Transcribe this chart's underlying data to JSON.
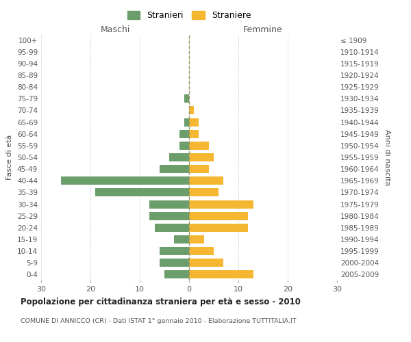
{
  "age_groups": [
    "100+",
    "95-99",
    "90-94",
    "85-89",
    "80-84",
    "75-79",
    "70-74",
    "65-69",
    "60-64",
    "55-59",
    "50-54",
    "45-49",
    "40-44",
    "35-39",
    "30-34",
    "25-29",
    "20-24",
    "15-19",
    "10-14",
    "5-9",
    "0-4"
  ],
  "birth_years": [
    "≤ 1909",
    "1910-1914",
    "1915-1919",
    "1920-1924",
    "1925-1929",
    "1930-1934",
    "1935-1939",
    "1940-1944",
    "1945-1949",
    "1950-1954",
    "1955-1959",
    "1960-1964",
    "1965-1969",
    "1970-1974",
    "1975-1979",
    "1980-1984",
    "1985-1989",
    "1990-1994",
    "1995-1999",
    "2000-2004",
    "2005-2009"
  ],
  "maschi": [
    0,
    0,
    0,
    0,
    0,
    1,
    0,
    1,
    2,
    2,
    4,
    6,
    26,
    19,
    8,
    8,
    7,
    3,
    6,
    6,
    5
  ],
  "femmine": [
    0,
    0,
    0,
    0,
    0,
    0,
    1,
    2,
    2,
    4,
    5,
    4,
    7,
    6,
    13,
    12,
    12,
    3,
    5,
    7,
    13
  ],
  "color_maschi": "#6b9e6b",
  "color_femmine": "#f5b731",
  "title": "Popolazione per cittadinanza straniera per età e sesso - 2010",
  "subtitle": "COMUNE DI ANNICCO (CR) - Dati ISTAT 1° gennaio 2010 - Elaborazione TUTTITALIA.IT",
  "xlabel_left": "Maschi",
  "xlabel_right": "Femmine",
  "ylabel_left": "Fasce di età",
  "ylabel_right": "Anni di nascita",
  "legend_maschi": "Stranieri",
  "legend_femmine": "Straniere",
  "xlim": 30,
  "background_color": "#ffffff",
  "grid_color": "#cccccc"
}
